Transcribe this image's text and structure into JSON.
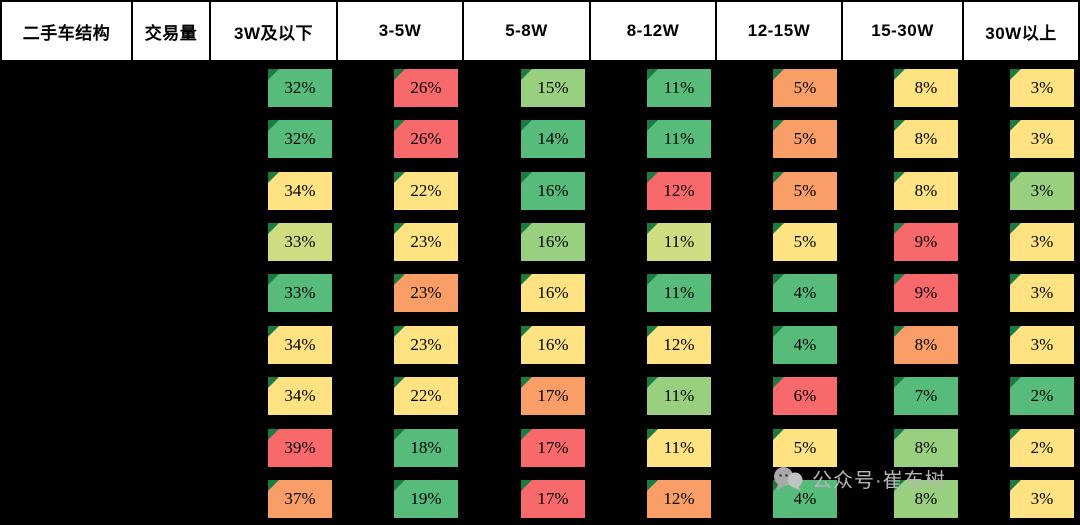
{
  "header": {
    "structure_label": "二手车结构",
    "volume_label": "交易量"
  },
  "chart_data": {
    "type": "heatmap",
    "title": "二手车结构 交易量",
    "row_header_label": "二手车结构",
    "value_header_label": "交易量",
    "columns": [
      "3W及以下",
      "3-5W",
      "5-8W",
      "8-12W",
      "12-15W",
      "15-30W",
      "30W以上"
    ],
    "rows": [
      {
        "values": [
          "32%",
          "26%",
          "15%",
          "11%",
          "5%",
          "8%",
          "3%"
        ],
        "colors": [
          "green",
          "red",
          "lightgreen",
          "green",
          "orange",
          "yellow",
          "yellow"
        ]
      },
      {
        "values": [
          "32%",
          "26%",
          "14%",
          "11%",
          "5%",
          "8%",
          "3%"
        ],
        "colors": [
          "green",
          "red",
          "green",
          "green",
          "orange",
          "yellow",
          "yellow"
        ]
      },
      {
        "values": [
          "34%",
          "22%",
          "16%",
          "12%",
          "5%",
          "8%",
          "3%"
        ],
        "colors": [
          "yellow",
          "yellow",
          "green",
          "red",
          "orange",
          "yellow",
          "lightgreen"
        ]
      },
      {
        "values": [
          "33%",
          "23%",
          "16%",
          "11%",
          "5%",
          "9%",
          "3%"
        ],
        "colors": [
          "yellowgreen",
          "yellow",
          "lightgreen",
          "yellowgreen",
          "yellow",
          "red",
          "yellow"
        ]
      },
      {
        "values": [
          "33%",
          "23%",
          "16%",
          "11%",
          "4%",
          "9%",
          "3%"
        ],
        "colors": [
          "green",
          "orange",
          "yellow",
          "green",
          "green",
          "red",
          "yellow"
        ]
      },
      {
        "values": [
          "34%",
          "23%",
          "16%",
          "12%",
          "4%",
          "8%",
          "3%"
        ],
        "colors": [
          "yellow",
          "yellow",
          "yellow",
          "yellow",
          "green",
          "orange",
          "yellow"
        ]
      },
      {
        "values": [
          "34%",
          "22%",
          "17%",
          "11%",
          "6%",
          "7%",
          "2%"
        ],
        "colors": [
          "yellow",
          "yellow",
          "orange",
          "lightgreen",
          "red",
          "green",
          "green"
        ]
      },
      {
        "values": [
          "39%",
          "18%",
          "17%",
          "11%",
          "5%",
          "8%",
          "2%"
        ],
        "colors": [
          "red",
          "green",
          "red",
          "yellow",
          "yellow",
          "lightgreen",
          "yellow"
        ]
      },
      {
        "values": [
          "37%",
          "19%",
          "17%",
          "12%",
          "4%",
          "8%",
          "3%"
        ],
        "colors": [
          "orange",
          "green",
          "red",
          "orange",
          "green",
          "lightgreen",
          "yellow"
        ]
      }
    ],
    "palette": {
      "green": "#57bb7b",
      "lightgreen": "#99d07f",
      "yellowgreen": "#cedd82",
      "yellow": "#ffe383",
      "orange": "#fa9e68",
      "red": "#f8696b"
    },
    "corner_marker_color": "#1c7a43",
    "legend_position": "none",
    "grid": false
  },
  "watermark": {
    "text": "公众号·崔东树",
    "icon": "chat-bubbles-icon",
    "color": "#b5b5b5"
  }
}
